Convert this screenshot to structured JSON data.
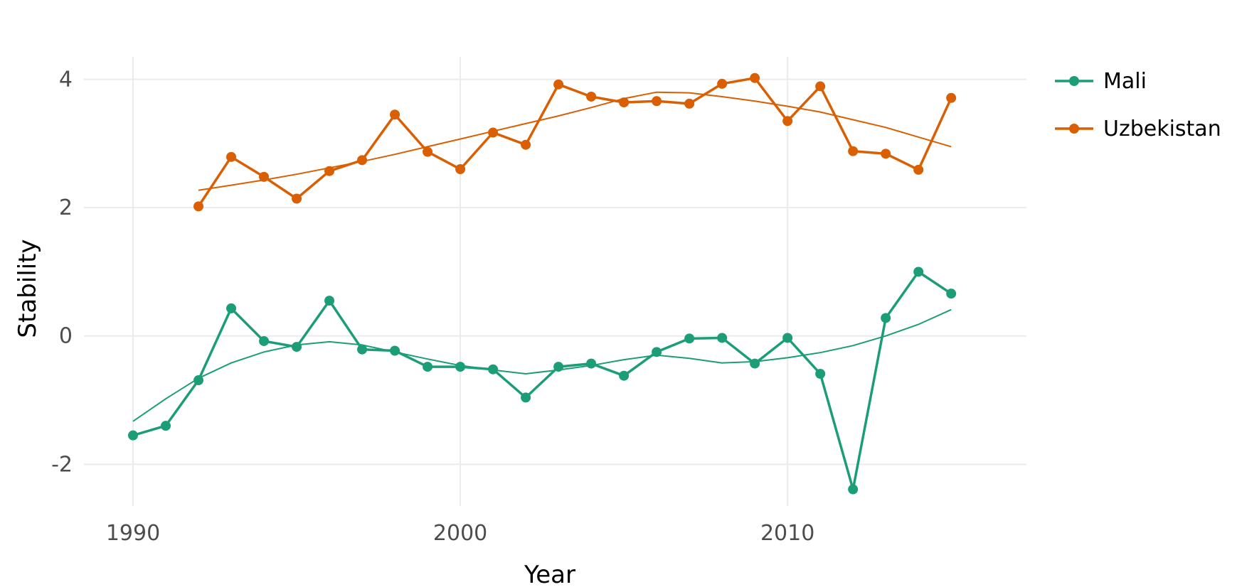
{
  "chart_data": {
    "type": "line",
    "xlabel": "Year",
    "ylabel": "Stability",
    "xlim": [
      1988.5,
      2017.3
    ],
    "ylim": [
      -2.65,
      4.35
    ],
    "x_ticks": [
      1990,
      2000,
      2010
    ],
    "x_tick_labels": [
      "1990",
      "2000",
      "2010"
    ],
    "y_ticks": [
      -2,
      0,
      2,
      4
    ],
    "y_tick_labels": [
      "-2",
      "0",
      "2",
      "4"
    ],
    "grid": true,
    "legend_position": "right",
    "series": [
      {
        "name": "Mali",
        "color": "#1b9e77",
        "x": [
          1990,
          1991,
          1992,
          1993,
          1994,
          1995,
          1996,
          1997,
          1998,
          1999,
          2000,
          2001,
          2002,
          2003,
          2004,
          2005,
          2006,
          2007,
          2008,
          2009,
          2010,
          2011,
          2012,
          2013,
          2014,
          2015
        ],
        "y": [
          -1.55,
          -1.4,
          -0.69,
          0.43,
          -0.08,
          -0.17,
          0.55,
          -0.21,
          -0.23,
          -0.48,
          -0.48,
          -0.52,
          -0.96,
          -0.48,
          -0.43,
          -0.62,
          -0.25,
          -0.04,
          -0.03,
          -0.43,
          -0.03,
          -0.59,
          -2.39,
          0.28,
          1.0,
          0.66
        ],
        "trend_x": [
          1990,
          1991,
          1992,
          1993,
          1994,
          1995,
          1996,
          1997,
          1998,
          1999,
          2000,
          2001,
          2002,
          2003,
          2004,
          2005,
          2006,
          2007,
          2008,
          2009,
          2010,
          2011,
          2012,
          2013,
          2014,
          2015
        ],
        "trend_y": [
          -1.33,
          -0.98,
          -0.66,
          -0.42,
          -0.25,
          -0.14,
          -0.09,
          -0.14,
          -0.25,
          -0.36,
          -0.46,
          -0.53,
          -0.59,
          -0.53,
          -0.46,
          -0.37,
          -0.3,
          -0.35,
          -0.42,
          -0.4,
          -0.34,
          -0.26,
          -0.15,
          0.0,
          0.18,
          0.41
        ]
      },
      {
        "name": "Uzbekistan",
        "color": "#d95f02",
        "x": [
          1992,
          1993,
          1994,
          1995,
          1996,
          1997,
          1998,
          1999,
          2000,
          2001,
          2002,
          2003,
          2004,
          2005,
          2006,
          2007,
          2008,
          2009,
          2010,
          2011,
          2012,
          2013,
          2014,
          2015
        ],
        "y": [
          2.02,
          2.79,
          2.48,
          2.14,
          2.57,
          2.74,
          3.45,
          2.87,
          2.6,
          3.17,
          2.98,
          3.92,
          3.73,
          3.64,
          3.66,
          3.62,
          3.93,
          4.02,
          3.35,
          3.89,
          2.88,
          2.84,
          2.59,
          3.71
        ],
        "trend_x": [
          1992,
          1993,
          1994,
          1995,
          1996,
          1997,
          1998,
          1999,
          2000,
          2001,
          2002,
          2003,
          2004,
          2005,
          2006,
          2007,
          2008,
          2009,
          2010,
          2011,
          2012,
          2013,
          2014,
          2015
        ],
        "trend_y": [
          2.27,
          2.35,
          2.43,
          2.52,
          2.62,
          2.72,
          2.83,
          2.95,
          3.07,
          3.19,
          3.31,
          3.43,
          3.56,
          3.7,
          3.8,
          3.79,
          3.73,
          3.66,
          3.58,
          3.49,
          3.37,
          3.25,
          3.1,
          2.95
        ]
      }
    ]
  }
}
